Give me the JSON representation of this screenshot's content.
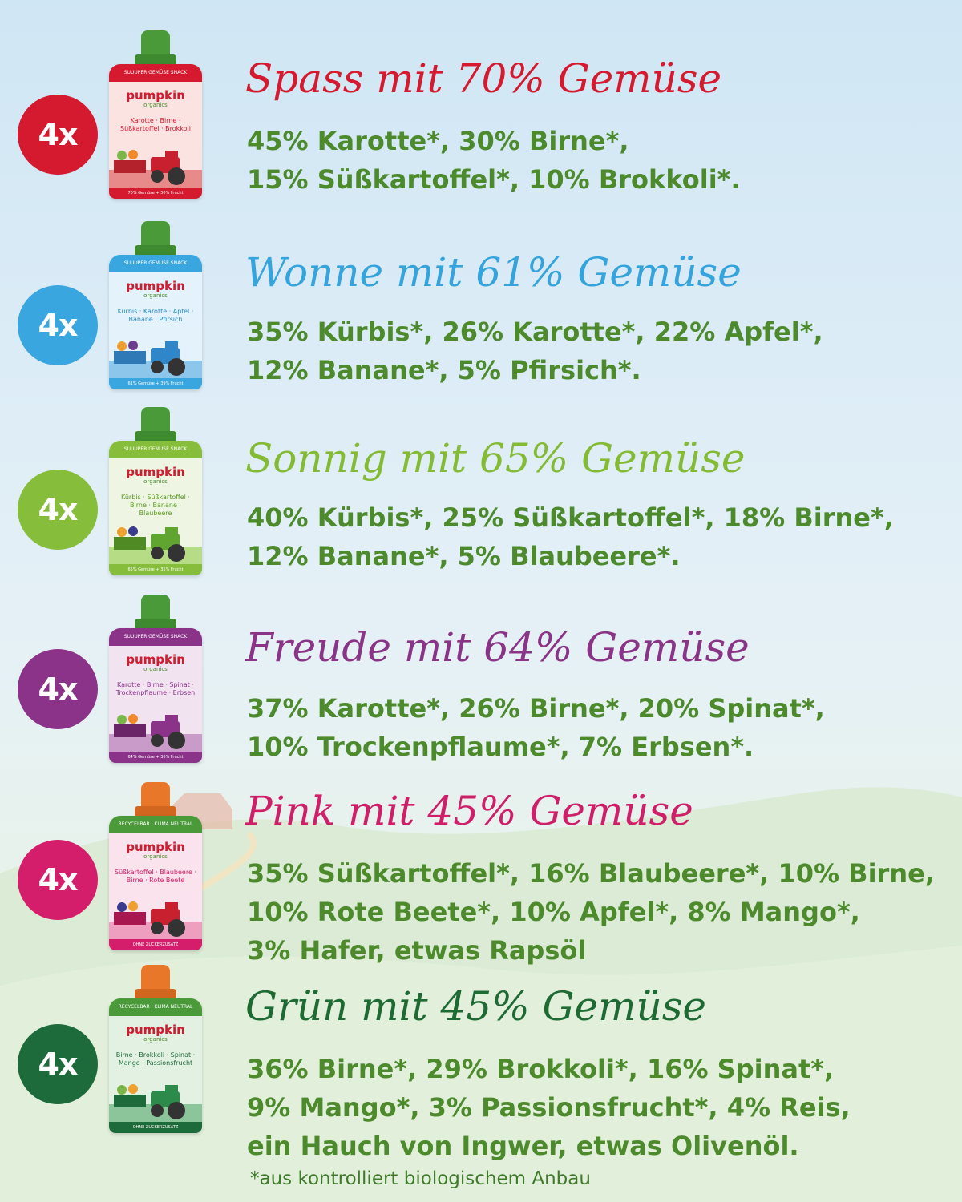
{
  "products": [
    {
      "count": "4x",
      "title": "Spass mit 70% Gemüse",
      "lines": [
        "45% Karotte*, 30% Birne*,",
        "15% Süßkartoffel*, 10% Brokkoli*."
      ],
      "pouch_flavor": "Karotte · Birne · Süßkartoffel · Brokkoli",
      "color": "#d5192f",
      "title_color": "#d5192f",
      "cap_color": "#4a9a3a"
    },
    {
      "count": "4x",
      "title": "Wonne mit 61% Gemüse",
      "lines": [
        "35% Kürbis*, 26% Karotte*, 22% Apfel*,",
        "12% Banane*, 5% Pfirsich*."
      ],
      "pouch_flavor": "Kürbis · Karotte · Apfel · Banane · Pfirsich",
      "color": "#3aa6df",
      "title_color": "#35a3dc",
      "cap_color": "#4a9a3a"
    },
    {
      "count": "4x",
      "title": "Sonnig mit 65% Gemüse",
      "lines": [
        "40% Kürbis*, 25% Süßkartoffel*, 18% Birne*,",
        "12% Banane*, 5% Blaubeere*."
      ],
      "pouch_flavor": "Kürbis · Süßkartoffel · Birne · Banane · Blaubeere",
      "color": "#86bd3a",
      "title_color": "#84bb34",
      "cap_color": "#4a9a3a"
    },
    {
      "count": "4x",
      "title": "Freude mit 64% Gemüse",
      "lines": [
        "37% Karotte*, 26% Birne*, 20% Spinat*,",
        "10% Trockenpflaume*, 7% Erbsen*."
      ],
      "pouch_flavor": "Karotte · Birne · Spinat · Trockenpflaume · Erbsen",
      "color": "#8b3389",
      "title_color": "#8a3487",
      "cap_color": "#4a9a3a"
    },
    {
      "count": "4x",
      "title": "Pink mit 45% Gemüse",
      "lines": [
        "35% Süßkartoffel*, 16% Blaubeere*, 10% Birne,",
        "10% Rote Beete*, 10% Apfel*, 8% Mango*,",
        "3% Hafer, etwas Rapsöl"
      ],
      "pouch_flavor": "Süßkartoffel · Blaubeere · Birne · Rote Beete",
      "color": "#d51e6b",
      "title_color": "#d01f69",
      "cap_color": "#e9772a"
    },
    {
      "count": "4x",
      "title": "Grün mit 45% Gemüse",
      "lines": [
        "36% Birne*, 29% Brokkoli*, 16% Spinat*,",
        "9% Mango*, 3% Passionsfrucht*, 4% Reis,",
        "ein Hauch von Ingwer, etwas Olivenöl."
      ],
      "pouch_flavor": "Birne · Brokkoli · Spinat · Mango · Passionsfrucht",
      "color": "#1d6b3a",
      "title_color": "#1e6a33",
      "cap_color": "#e9772a"
    }
  ],
  "footnote": "*aus kontrolliert biologischem Anbau",
  "ingredient_color": "#4c8a2c"
}
